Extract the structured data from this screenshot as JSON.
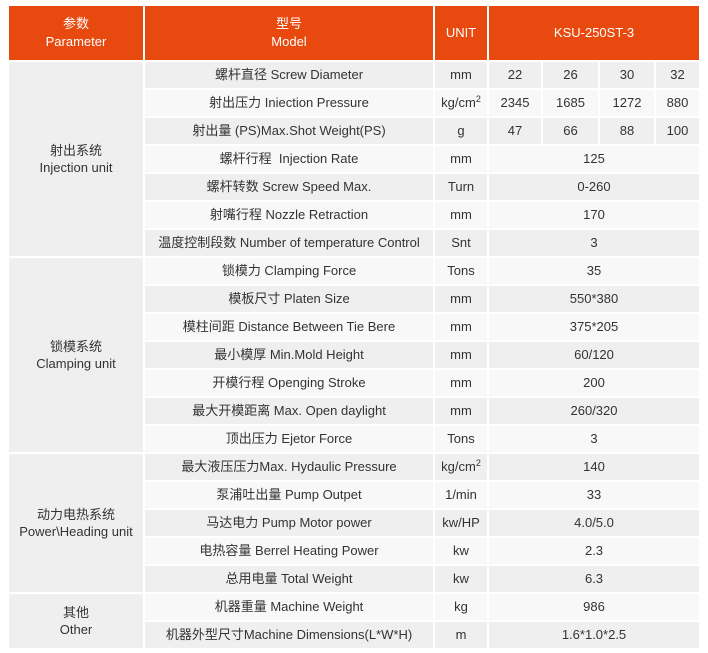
{
  "header": {
    "parameter_zh": "参数",
    "parameter_en": "Parameter",
    "model_zh": "型号",
    "model_en": "Model",
    "unit": "UNIT",
    "model_name": "KSU-250ST-3"
  },
  "groups": [
    {
      "name_zh": "射出系统",
      "name_en": "Injection unit",
      "rows": [
        {
          "label": "螺杆直径 Screw Diameter",
          "unit": "mm",
          "values": [
            "22",
            "26",
            "30",
            "32"
          ]
        },
        {
          "label": "射出压力 Iniection Pressure",
          "unit": "kg/cm",
          "unit_sup": "2",
          "values": [
            "2345",
            "1685",
            "1272",
            "880"
          ]
        },
        {
          "label": "射出量 (PS)Max.Shot Weight(PS)",
          "unit": "g",
          "values": [
            "47",
            "66",
            "88",
            "100"
          ]
        },
        {
          "label": "螺杆行程  Injection Rate",
          "unit": "mm",
          "values": [
            "125"
          ]
        },
        {
          "label": "螺杆转数 Screw Speed Max.",
          "unit": "Turn",
          "values": [
            "0-260"
          ]
        },
        {
          "label": "射嘴行程 Nozzle Retraction",
          "unit": "mm",
          "values": [
            "170"
          ]
        },
        {
          "label": "温度控制段数 Number of temperature Control",
          "unit": "Snt",
          "values": [
            "3"
          ]
        }
      ]
    },
    {
      "name_zh": "锁模系统",
      "name_en": "Clamping unit",
      "rows": [
        {
          "label": "锁模力 Clamping Force",
          "unit": "Tons",
          "values": [
            "35"
          ]
        },
        {
          "label": "模板尺寸 Platen Size",
          "unit": "mm",
          "values": [
            "550*380"
          ]
        },
        {
          "label": "模柱间距 Distance Between Tie Bere",
          "unit": "mm",
          "values": [
            "375*205"
          ]
        },
        {
          "label": "最小模厚 Min.Mold Height",
          "unit": "mm",
          "values": [
            "60/120"
          ]
        },
        {
          "label": "开模行程 Openging Stroke",
          "unit": "mm",
          "values": [
            "200"
          ]
        },
        {
          "label": "最大开模距离 Max. Open daylight",
          "unit": "mm",
          "values": [
            "260/320"
          ]
        },
        {
          "label": "顶出压力 Ejetor Force",
          "unit": "Tons",
          "values": [
            "3"
          ]
        }
      ]
    },
    {
      "name_zh": "动力电热系统",
      "name_en": "Power\\Heading unit",
      "rows": [
        {
          "label": "最大液压压力Max. Hydaulic Pressure",
          "unit": "kg/cm",
          "unit_sup": "2",
          "values": [
            "140"
          ]
        },
        {
          "label": "泵浦吐出量 Pump Outpet",
          "unit": "1/min",
          "values": [
            "33"
          ]
        },
        {
          "label": "马达电力 Pump Motor power",
          "unit": "kw/HP",
          "values": [
            "4.0/5.0"
          ]
        },
        {
          "label": "电热容量 Berrel Heating Power",
          "unit": "kw",
          "values": [
            "2.3"
          ]
        },
        {
          "label": "总用电量 Total Weight",
          "unit": "kw",
          "values": [
            "6.3"
          ]
        }
      ]
    },
    {
      "name_zh": "其他",
      "name_en": "Other",
      "rows": [
        {
          "label": "机器重量 Machine Weight",
          "unit": "kg",
          "values": [
            "986"
          ]
        },
        {
          "label": "机器外型尺寸Machine Dimensions(L*W*H)",
          "unit": "m",
          "values": [
            "1.6*1.0*2.5"
          ]
        }
      ]
    }
  ],
  "colors": {
    "header_bg": "#e8490f",
    "header_text": "#ffffff",
    "row_odd": "#efefef",
    "row_even": "#f8f8f8",
    "group_bg": "#efefef",
    "body_text": "#333333"
  }
}
